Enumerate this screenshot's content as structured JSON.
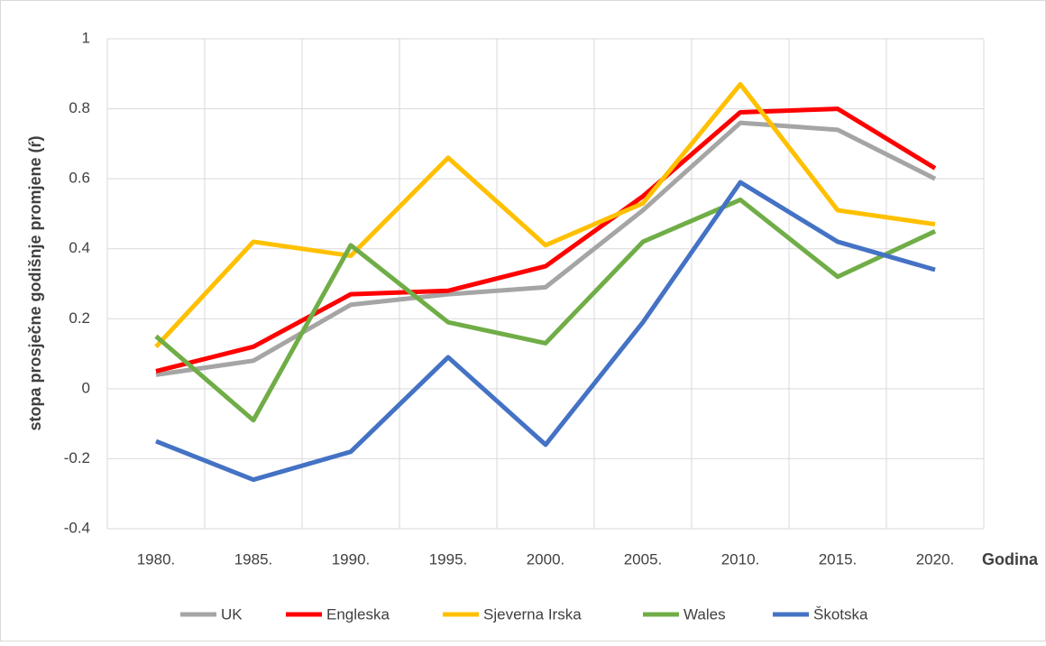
{
  "chart_data": {
    "type": "line",
    "x_label": "Godina",
    "y_label": "stopa prosječne godišnje promjene (ŕ)",
    "categories": [
      "1980.",
      "1985.",
      "1990.",
      "1995.",
      "2000.",
      "2005.",
      "2010.",
      "2015.",
      "2020."
    ],
    "series": [
      {
        "name": "UK",
        "color": "#a5a5a5",
        "values": [
          0.04,
          0.08,
          0.24,
          0.27,
          0.29,
          0.51,
          0.76,
          0.74,
          0.6
        ]
      },
      {
        "name": "Engleska",
        "color": "#ff0000",
        "values": [
          0.05,
          0.12,
          0.27,
          0.28,
          0.35,
          0.55,
          0.79,
          0.8,
          0.63
        ]
      },
      {
        "name": "Sjeverna Irska",
        "color": "#ffc000",
        "values": [
          0.12,
          0.42,
          0.38,
          0.66,
          0.41,
          0.53,
          0.87,
          0.51,
          0.47
        ]
      },
      {
        "name": "Wales",
        "color": "#70ad47",
        "values": [
          0.15,
          -0.09,
          0.41,
          0.19,
          0.13,
          0.42,
          0.54,
          0.32,
          0.45
        ]
      },
      {
        "name": "Škotska",
        "color": "#4472c4",
        "values": [
          -0.15,
          -0.26,
          -0.18,
          0.09,
          -0.16,
          0.19,
          0.59,
          0.42,
          0.34
        ]
      }
    ],
    "ylim": [
      -0.4,
      1
    ],
    "yticks": [
      -0.4,
      -0.2,
      0,
      0.2,
      0.4,
      0.6,
      0.8,
      1
    ],
    "grid": true,
    "legend": "bottom"
  }
}
